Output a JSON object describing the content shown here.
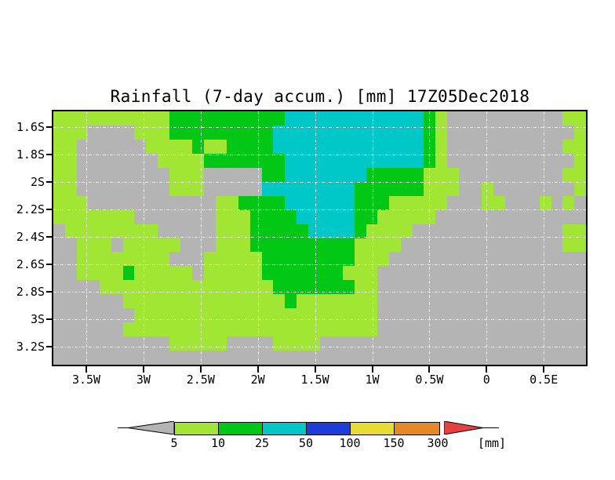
{
  "title": "Rainfall (7-day accum.) [mm] 17Z05Dec2018",
  "chart_data": {
    "type": "heatmap",
    "title": "Rainfall (7-day accum.) [mm] 17Z05Dec2018",
    "lon_ticks": [
      "3.5W",
      "3W",
      "2.5W",
      "2W",
      "1.5W",
      "1W",
      "0.5W",
      "0",
      "0.5E"
    ],
    "lat_ticks": [
      "1.6S",
      "1.8S",
      "2S",
      "2.2S",
      "2.4S",
      "2.6S",
      "2.8S",
      "3S",
      "3.2S"
    ],
    "grid_on": true,
    "palette": {
      "G": "#b4b4b4",
      "Y": "#a0e632",
      "N": "#00c814",
      "C": "#00c8c8"
    },
    "palette_meaning": {
      "G": "below 5 mm",
      "Y": "5-10 mm",
      "N": "10-25 mm",
      "C": "25-50 mm"
    },
    "grid_rows": [
      "YYYYYYYYYYNNNNNNNNNNCCCCCCCCCCCCNYGGGGGGGGGGYY",
      "YYYGGGGYYYNNNNNNNNNCCCCCCCCCCCCCNYGGGGGGGGGGGY",
      "YYGGGGGGYYYYNYYNNNNCCCCCCCCCCCCCNYGGGGGGGGGGYY",
      "YYGGGGGGGYYYYNNNNNNNCCCCCCCCCCCCNYGGGGGGGGGGGY",
      "YYGGGGGGGGYYYGGGGGNNCCCCCCCNNNNNYYYGGGGGGGGGYY",
      "YYGGGGGGGGYYYGGGGGCCCCCCCCNNNNNNYYYGGYGGGGGGGY",
      "YYYGGGGGGGGGGGYYNNNNCCCCCCNNNYYYYYGGGYYGGGYGYG",
      "YYYYYYYGGGGGGGYYYNNNNCCCCCNNYYYYYGGGGGGGGGGGGG",
      "GYYYYYYYYGGGGGYYYNNNNNCCCCNYYYYGGGGGGGGGGGGGYY",
      "GGYYYGYYYYYGGGYYYNNNNNNNNNYYYYGGGGGGGGGGGGGGYY",
      "GGYYYYYYYYGGGYYYYYNNNNNNNNYYYGGGGGGGGGGGGGGGGG",
      "GGYYYYNYYYYYGYYYYYNNNNNNNYYYGGGGGGGGGGGGGGGGGG",
      "GGGGYYYYYYYYYYYYYYYNNNNNNNYYGGGGGGGGGGGGGGGGGG",
      "GGGGGGYYYYYYYYYYYYYYNYYYYYYYGGGGGGGGGGGGGGGGGG",
      "GGGGGGGYYYYYYYYYYYYYYYYYYYYYGGGGGGGGGGGGGGGGGG",
      "GGGGGGYYYYYYYYYYYYYYYYYYYYYYGGGGGGGGGGGGGGGGGG",
      "GGGGGGGGGGYYYYYGGGGYYYYGGGGGGGGGGGGGGGGGGGGGGG",
      "GGGGGGGGGGGGGGGGGGGGGGGGGGGGGGGGGGGGGGGGGGGGGG"
    ],
    "legend": {
      "thresholds": [
        "5",
        "10",
        "25",
        "50",
        "100",
        "150",
        "300"
      ],
      "unit": "[mm]",
      "segment_colors": [
        "#a0e632",
        "#00c814",
        "#00c8c8",
        "#1e3cdc",
        "#e6dc32",
        "#e68728"
      ],
      "below_color": "#b4b4b4",
      "above_color": "#e64040"
    }
  }
}
